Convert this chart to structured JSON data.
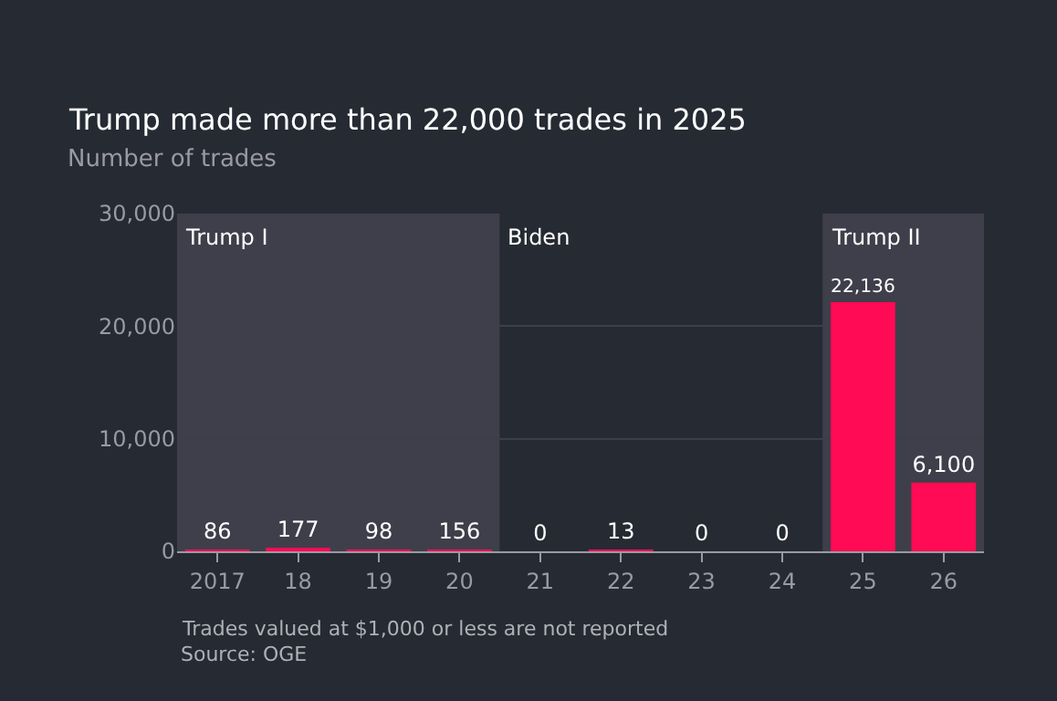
{
  "chart_data": {
    "type": "bar",
    "title": "Trump made more than 22,000 trades in 2025",
    "subtitle": "Number of trades",
    "categories": [
      "2017",
      "18",
      "19",
      "20",
      "21",
      "22",
      "23",
      "24",
      "25",
      "26"
    ],
    "values": [
      86,
      177,
      98,
      156,
      0,
      13,
      0,
      0,
      22136,
      6100
    ],
    "color": "#ff0a54",
    "value_labels": [
      "86",
      "177",
      "98",
      "156",
      "0",
      "13",
      "0",
      "0",
      "22,136",
      "6,100"
    ],
    "ylim": [
      0,
      30000
    ],
    "yticks": [
      0,
      {
        "value": 10000,
        "label": "10,000"
      },
      {
        "value": 20000,
        "label": "20,000"
      },
      {
        "value": 30000,
        "label": "30,000"
      }
    ],
    "grid": "y",
    "bands": [
      {
        "axis": "x",
        "from": "2017",
        "to": "20",
        "label": "Trump I",
        "color": "#3f3f4b"
      },
      {
        "axis": "x",
        "from": "21",
        "to": "24",
        "label": "Biden",
        "color": "#262a33"
      },
      {
        "axis": "x",
        "from": "25",
        "to": "26",
        "label": "Trump II",
        "color": "#3f3f4b"
      }
    ],
    "annotations": [
      "Trades valued at $1,000 or less are not reported",
      "Source: OGE"
    ]
  }
}
